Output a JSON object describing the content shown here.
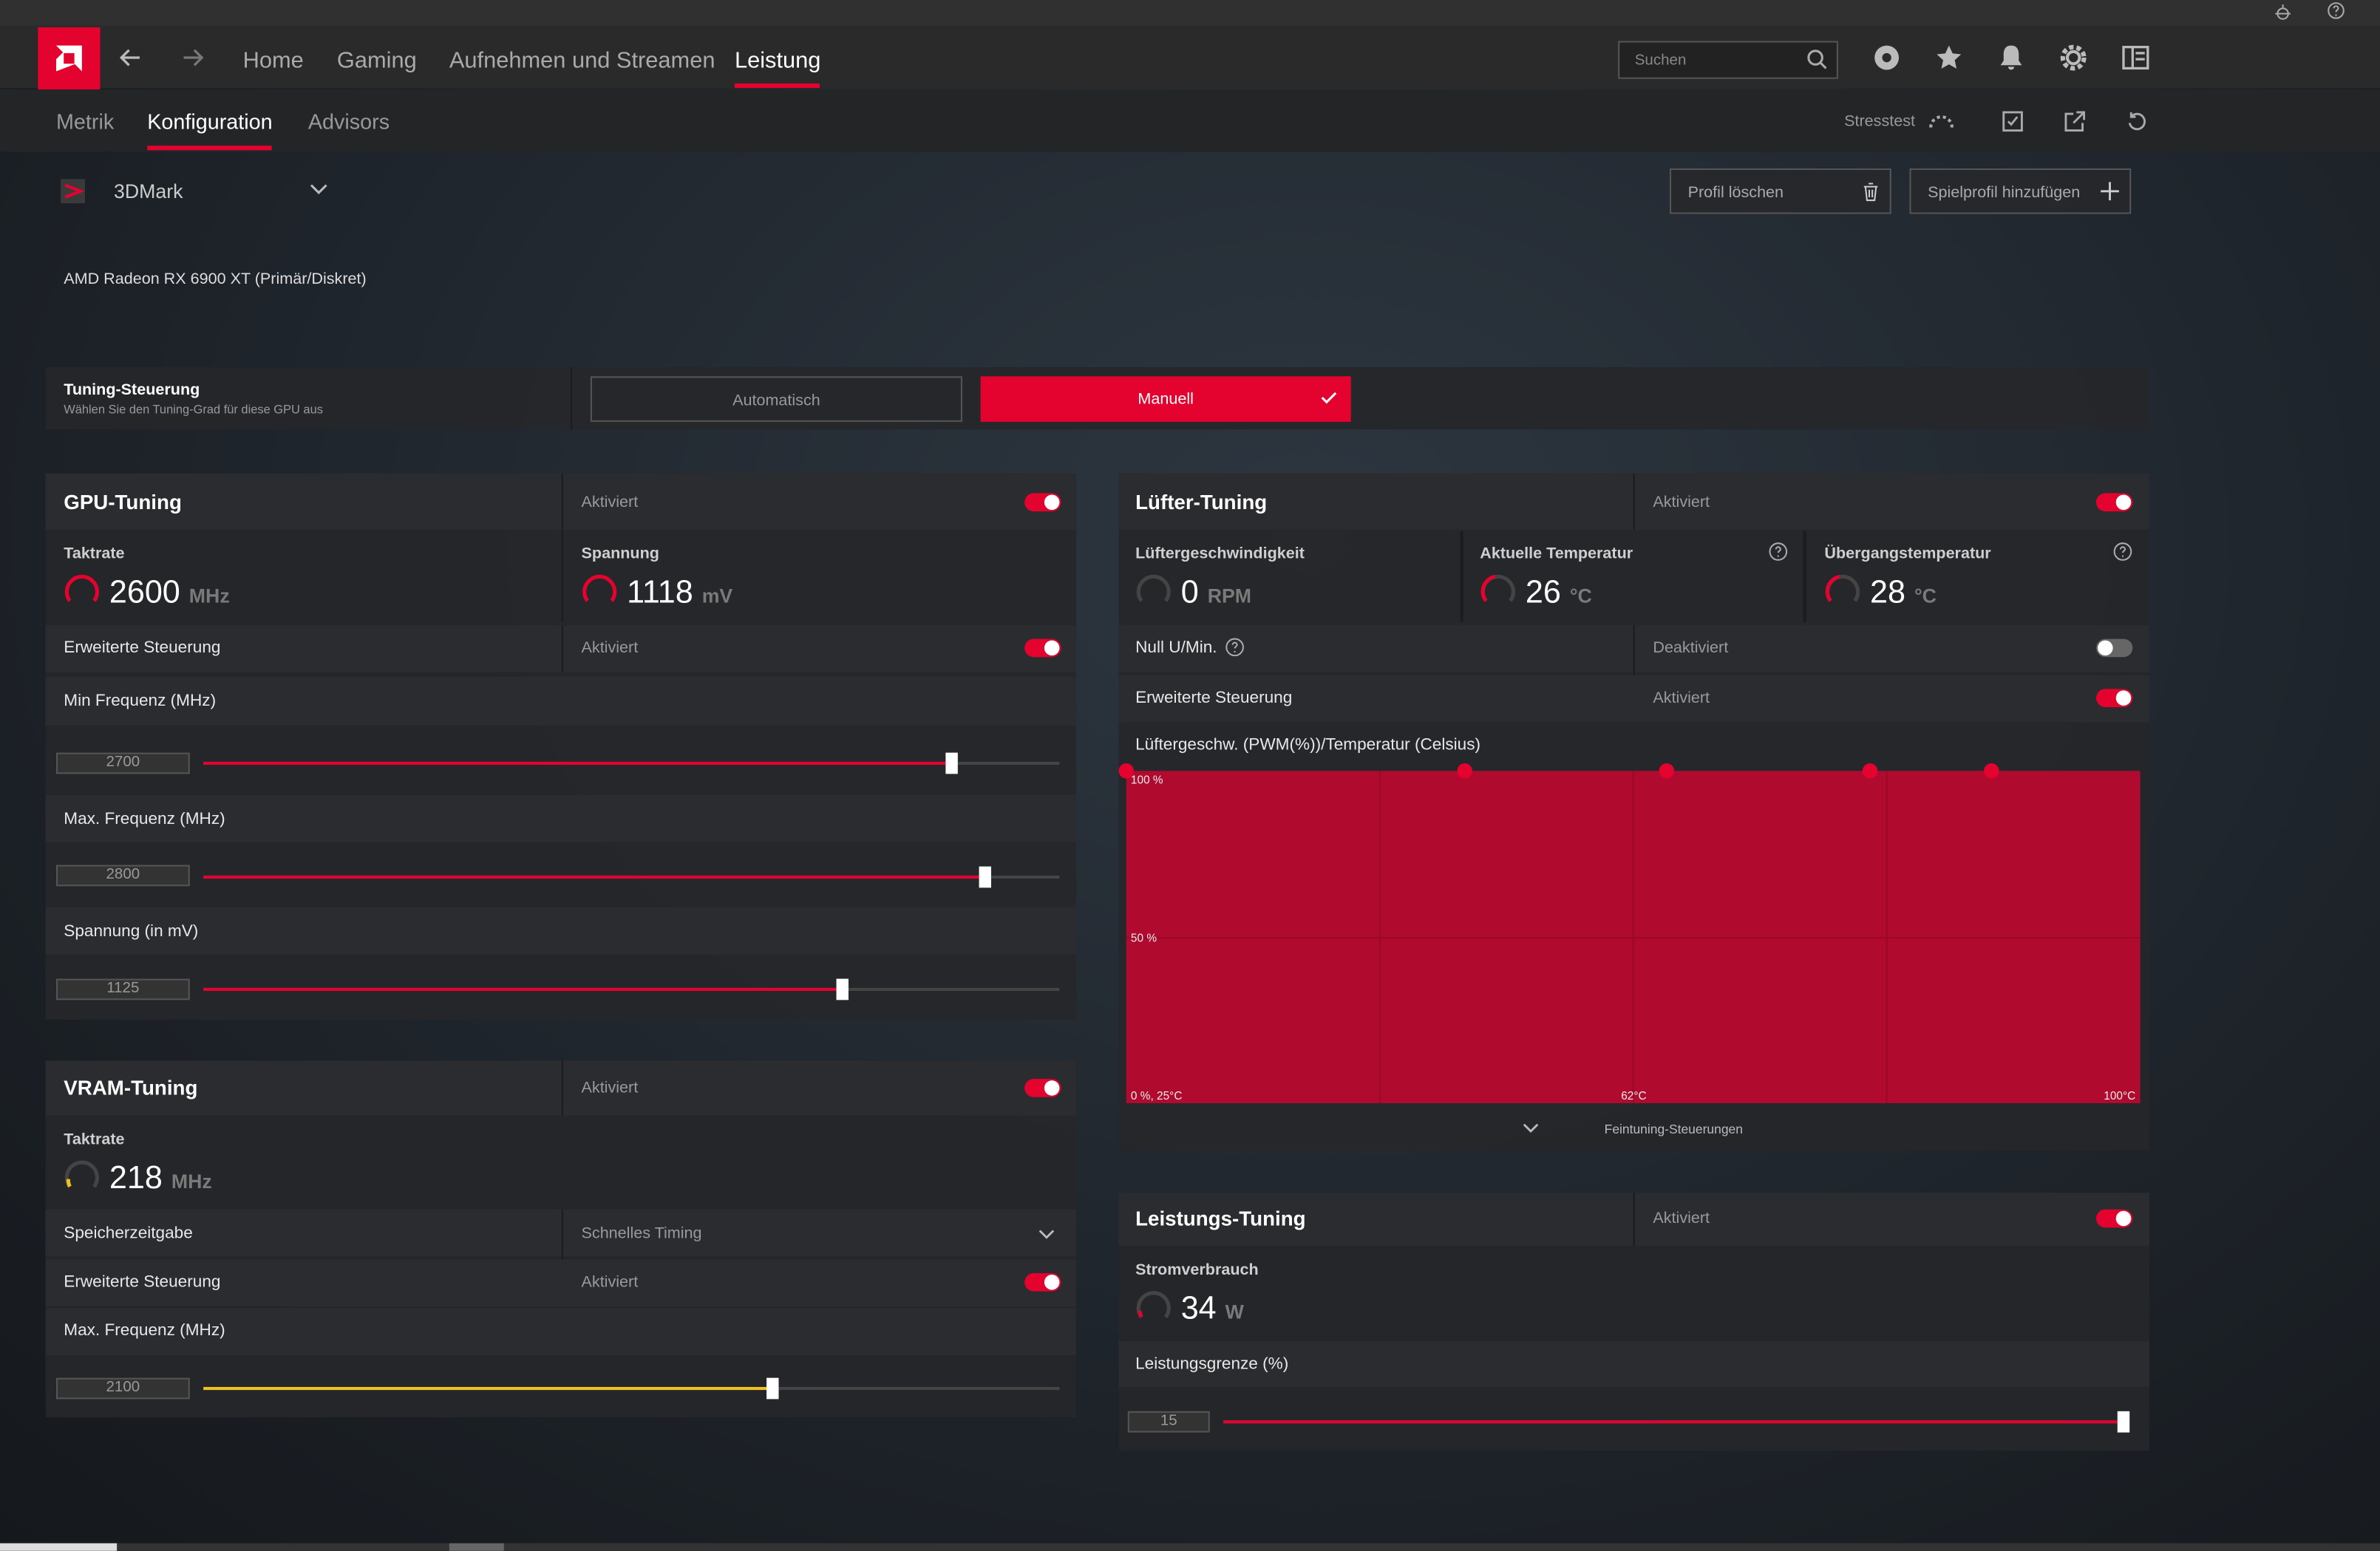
{
  "nav": {
    "tabs": [
      "Home",
      "Gaming",
      "Aufnehmen und Streamen",
      "Leistung"
    ],
    "search": "Suchen"
  },
  "subnav": {
    "tabs": [
      "Metrik",
      "Konfiguration",
      "Advisors"
    ],
    "stresstest": "Stresstest"
  },
  "profile": {
    "name": "3DMark",
    "delete": "Profil löschen",
    "add": "Spielprofil hinzufügen"
  },
  "gpu_name": "AMD Radeon RX 6900 XT (Primär/Diskret)",
  "tuning_control": {
    "title": "Tuning-Steuerung",
    "subtitle": "Wählen Sie den Tuning-Grad für diese GPU aus",
    "options": [
      "Automatisch",
      "Manuell"
    ]
  },
  "gpu_tuning": {
    "title": "GPU-Tuning",
    "status": "Aktiviert",
    "metrics": [
      {
        "label": "Taktrate",
        "value": 2600,
        "unit": "MHz"
      },
      {
        "label": "Spannung",
        "value": 1118,
        "unit": "mV"
      }
    ],
    "advanced": {
      "label": "Erweiterte Steuerung",
      "status": "Aktiviert"
    },
    "sliders": [
      {
        "label": "Min Frequenz (MHz)",
        "value": 2700
      },
      {
        "label": "Max. Frequenz (MHz)",
        "value": 2800
      },
      {
        "label": "Spannung (in mV)",
        "value": 1125
      }
    ]
  },
  "vram_tuning": {
    "title": "VRAM-Tuning",
    "status": "Aktiviert",
    "metric": {
      "label": "Taktrate",
      "value": 218,
      "unit": "MHz"
    },
    "timing": {
      "label": "Speicherzeitgabe",
      "value": "Schnelles Timing"
    },
    "advanced": {
      "label": "Erweiterte Steuerung",
      "status": "Aktiviert"
    },
    "slider": {
      "label": "Max. Frequenz (MHz)",
      "value": 2100
    }
  },
  "fan_tuning": {
    "title": "Lüfter-Tuning",
    "status": "Aktiviert",
    "metrics": [
      {
        "label": "Lüftergeschwindigkeit",
        "value": 0,
        "unit": "RPM"
      },
      {
        "label": "Aktuelle Temperatur",
        "value": 26,
        "unit": "°C"
      },
      {
        "label": "Übergangstemperatur",
        "value": 28,
        "unit": "°C"
      }
    ],
    "zero_rpm": {
      "label": "Null U/Min.",
      "status": "Deaktiviert"
    },
    "advanced": {
      "label": "Erweiterte Steuerung",
      "status": "Aktiviert"
    },
    "curve": {
      "title": "Lüftergeschw. (PWM(%))/Temperatur (Celsius)",
      "y_top": "100 %",
      "y_mid": "50 %",
      "x_start": "0 %, 25°C",
      "x_mid": "62°C",
      "x_end": "100°C"
    },
    "fine_tuning": "Feintuning-Steuerungen"
  },
  "power_tuning": {
    "title": "Leistungs-Tuning",
    "status": "Aktiviert",
    "metric": {
      "label": "Stromverbrauch",
      "value": 34,
      "unit": "W"
    },
    "slider": {
      "label": "Leistungsgrenze (%)",
      "value": 15
    }
  }
}
